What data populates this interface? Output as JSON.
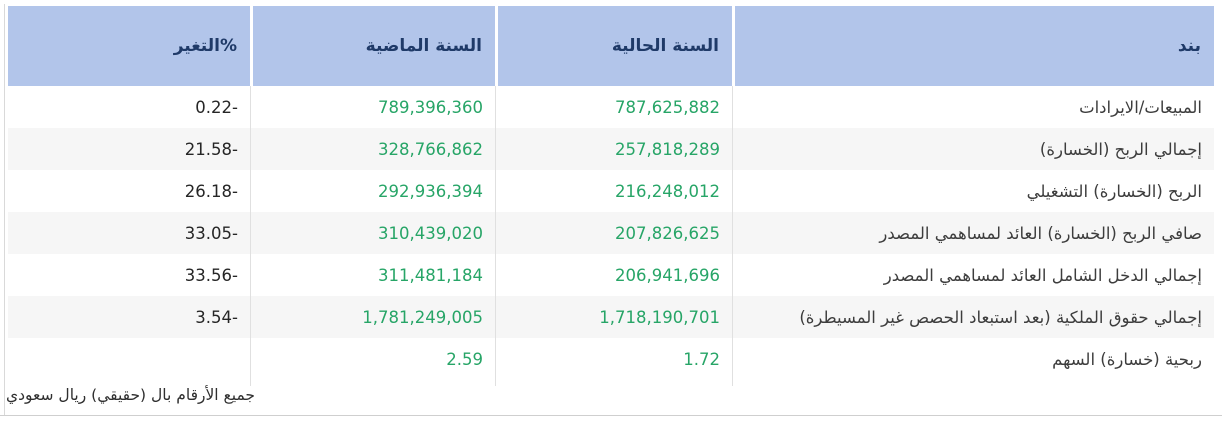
{
  "table": {
    "headers": {
      "item": "بند",
      "current_year": "السنة الحالية",
      "previous_year": "السنة الماضية",
      "change_percent": "التغير%"
    },
    "rows": [
      {
        "item": "المبيعات/الايرادات",
        "current": "787,625,882",
        "previous": "789,396,360",
        "change": "-0.22"
      },
      {
        "item": "إجمالي الربح (الخسارة)",
        "current": "257,818,289",
        "previous": "328,766,862",
        "change": "-21.58"
      },
      {
        "item": "الربح (الخسارة) التشغيلي",
        "current": "216,248,012",
        "previous": "292,936,394",
        "change": "-26.18"
      },
      {
        "item": "صافي الربح (الخسارة) العائد لمساهمي المصدر",
        "current": "207,826,625",
        "previous": "310,439,020",
        "change": "-33.05"
      },
      {
        "item": "إجمالي الدخل الشامل العائد لمساهمي المصدر",
        "current": "206,941,696",
        "previous": "311,481,184",
        "change": "-33.56"
      },
      {
        "item": "إجمالي حقوق الملكية (بعد استبعاد الحصص غير المسيطرة)",
        "current": "1,718,190,701",
        "previous": "1,781,249,005",
        "change": "-3.54"
      },
      {
        "item": "ربحية (خسارة) السهم",
        "current": "1.72",
        "previous": "2.59",
        "change": ""
      }
    ],
    "footnote": "جميع الأرقام بال (حقيقي) ريال سعودي"
  },
  "chart_data": {
    "type": "table",
    "title": "",
    "columns": [
      "بند",
      "السنة الحالية",
      "السنة الماضية",
      "التغير%"
    ],
    "rows": [
      [
        "المبيعات/الايرادات",
        787625882,
        789396360,
        -0.22
      ],
      [
        "إجمالي الربح (الخسارة)",
        257818289,
        328766862,
        -21.58
      ],
      [
        "الربح (الخسارة) التشغيلي",
        216248012,
        292936394,
        -26.18
      ],
      [
        "صافي الربح (الخسارة) العائد لمساهمي المصدر",
        207826625,
        310439020,
        -33.05
      ],
      [
        "إجمالي الدخل الشامل العائد لمساهمي المصدر",
        206941696,
        311481184,
        -33.56
      ],
      [
        "إجمالي حقوق الملكية (بعد استبعاد الحصص غير المسيطرة)",
        1718190701,
        1781249005,
        -3.54
      ],
      [
        "ربحية (خسارة) السهم",
        1.72,
        2.59,
        null
      ]
    ],
    "footnote": "جميع الأرقام بال (حقيقي) ريال سعودي"
  },
  "colors": {
    "header_bg": "#b2c5ea",
    "header_text": "#1f3a68",
    "value_green": "#27a567",
    "row_stripe": "#f6f6f6",
    "border": "#d9d9d9"
  }
}
